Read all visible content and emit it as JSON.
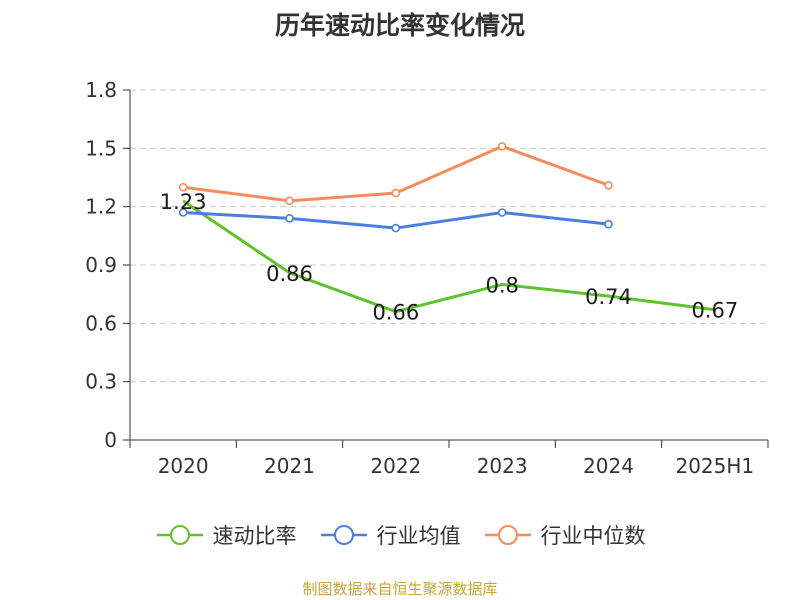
{
  "chart_data": {
    "type": "line",
    "title": "历年速动比率变化情况",
    "categories": [
      "2020",
      "2021",
      "2022",
      "2023",
      "2024",
      "2025H1"
    ],
    "yticks": [
      "0",
      "0.3",
      "0.6",
      "0.9",
      "1.2",
      "1.5",
      "1.8"
    ],
    "ylim": [
      0,
      1.8
    ],
    "grid": true,
    "legend_position": "bottom",
    "series": [
      {
        "name": "速动比率",
        "color": "#5ec22b",
        "values": [
          1.23,
          0.86,
          0.66,
          0.8,
          0.74,
          0.67
        ],
        "labels": [
          "1.23",
          "0.86",
          "0.66",
          "0.8",
          "0.74",
          "0.67"
        ],
        "show_labels": true
      },
      {
        "name": "行业均值",
        "color": "#4a7fdc",
        "values": [
          1.17,
          1.14,
          1.09,
          1.17,
          1.11,
          null
        ],
        "show_labels": false
      },
      {
        "name": "行业中位数",
        "color": "#f58d5a",
        "values": [
          1.3,
          1.23,
          1.27,
          1.51,
          1.31,
          null
        ],
        "show_labels": false
      }
    ]
  },
  "source": "制图数据来自恒生聚源数据库"
}
